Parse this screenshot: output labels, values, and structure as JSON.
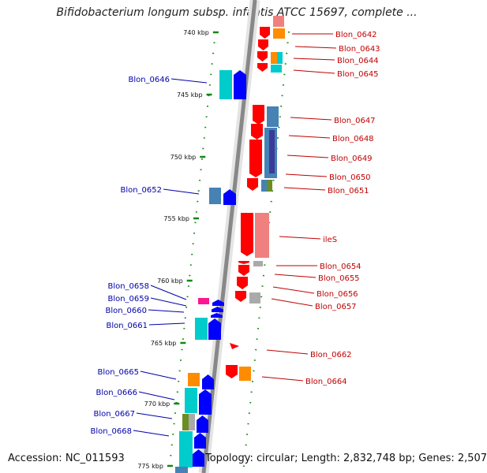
{
  "title": "Bifidobacterium longum subsp. infantis ATCC 15697, complete ...",
  "footer": {
    "accession": "Accession: NC_011593",
    "summary": "Topology: circular; Length: 2,832,748 bp; Genes: 2,507"
  },
  "scale": [
    {
      "label": "740 kbp",
      "kbp": 740
    },
    {
      "label": "745 kbp",
      "kbp": 745
    },
    {
      "label": "750 kbp",
      "kbp": 750
    },
    {
      "label": "755 kbp",
      "kbp": 755
    },
    {
      "label": "760 kbp",
      "kbp": 760
    },
    {
      "label": "765 kbp",
      "kbp": 765
    },
    {
      "label": "770 kbp",
      "kbp": 770
    },
    {
      "label": "775 kbp",
      "kbp": 775
    }
  ],
  "genes_right": [
    {
      "label": "Blon_0642",
      "color": "#ff0000"
    },
    {
      "label": "Blon_0643",
      "color": "#ff0000"
    },
    {
      "label": "Blon_0644",
      "color": "#ff0000"
    },
    {
      "label": "Blon_0645",
      "color": "#ff0000"
    },
    {
      "label": "Blon_0647",
      "color": "#ff0000"
    },
    {
      "label": "Blon_0648",
      "color": "#ff0000"
    },
    {
      "label": "Blon_0649",
      "color": "#ff0000"
    },
    {
      "label": "Blon_0650",
      "color": "#ff0000"
    },
    {
      "label": "Blon_0651",
      "color": "#ff0000"
    },
    {
      "label": "ileS",
      "color": "#ff0000"
    },
    {
      "label": "Blon_0654",
      "color": "#ff0000"
    },
    {
      "label": "Blon_0655",
      "color": "#ff0000"
    },
    {
      "label": "Blon_0656",
      "color": "#ff0000"
    },
    {
      "label": "Blon_0657",
      "color": "#ff0000"
    },
    {
      "label": "Blon_0662",
      "color": "#ff0000"
    },
    {
      "label": "Blon_0664",
      "color": "#ff0000"
    }
  ],
  "genes_left": [
    {
      "label": "Blon_0646",
      "color": "#0000ff"
    },
    {
      "label": "Blon_0652",
      "color": "#0000ff"
    },
    {
      "label": "Blon_0658",
      "color": "#0000ff"
    },
    {
      "label": "Blon_0659",
      "color": "#0000ff"
    },
    {
      "label": "Blon_0660",
      "color": "#0000ff"
    },
    {
      "label": "Blon_0661",
      "color": "#0000ff"
    },
    {
      "label": "Blon_0665",
      "color": "#0000ff"
    },
    {
      "label": "Blon_0666",
      "color": "#0000ff"
    },
    {
      "label": "Blon_0667",
      "color": "#0000ff"
    },
    {
      "label": "Blon_0668",
      "color": "#0000ff"
    }
  ],
  "colors": {
    "backbone": "#888888",
    "forward_gene": "#ff0000",
    "reverse_gene": "#0000ff",
    "tick": "#118811",
    "right_label": "#c00000",
    "left_label": "#0000aa",
    "cog_cyan": "#00cccc",
    "cog_steel": "#4682b4",
    "cog_orange": "#ff8c00",
    "cog_salmon": "#f08080",
    "cog_olive": "#6b8e23",
    "cog_magenta": "#ff1493",
    "cog_gray": "#aaaaaa",
    "cog_navy": "#3a3a9a"
  }
}
